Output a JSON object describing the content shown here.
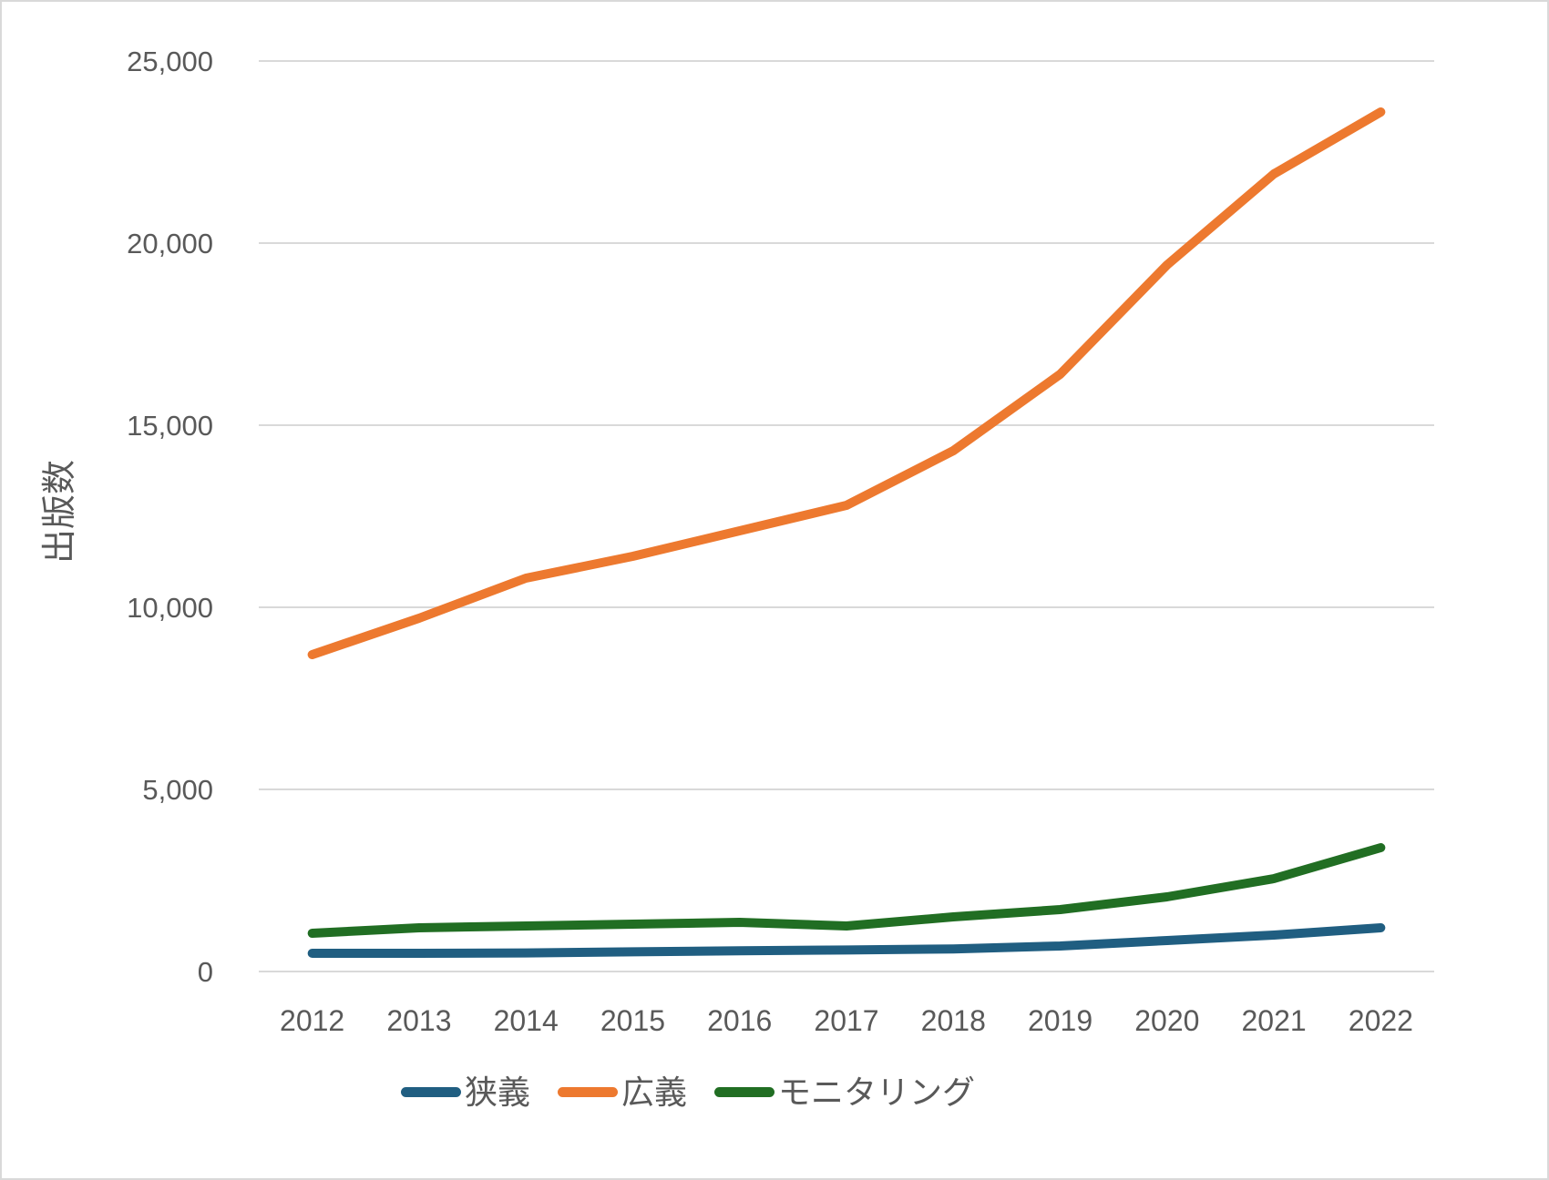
{
  "chart_data": {
    "type": "line",
    "title": "",
    "xlabel": "",
    "ylabel": "出版数",
    "categories": [
      "2012",
      "2013",
      "2014",
      "2015",
      "2016",
      "2017",
      "2018",
      "2019",
      "2020",
      "2021",
      "2022"
    ],
    "ylim": [
      0,
      25000
    ],
    "ytick_values": [
      0,
      5000,
      10000,
      15000,
      20000,
      25000
    ],
    "ytick_labels": [
      "0",
      "5,000",
      "10,000",
      "15,000",
      "20,000",
      "25,000"
    ],
    "grid": "horizontal",
    "legend_position": "bottom-center",
    "series": [
      {
        "name": "狭義",
        "color": "#205E81",
        "values": [
          500,
          500,
          510,
          540,
          570,
          590,
          620,
          700,
          850,
          1000,
          1200
        ]
      },
      {
        "name": "広義",
        "color": "#ED792F",
        "values": [
          8700,
          9700,
          10800,
          11400,
          12100,
          12800,
          14300,
          16400,
          19400,
          21900,
          23600
        ]
      },
      {
        "name": "モニタリング",
        "color": "#216E23",
        "values": [
          1050,
          1200,
          1250,
          1300,
          1350,
          1250,
          1500,
          1700,
          2050,
          2550,
          3400
        ]
      }
    ],
    "style": {
      "grid_color": "#D9D9D9",
      "text_color": "#595959",
      "line_width": 10
    }
  }
}
